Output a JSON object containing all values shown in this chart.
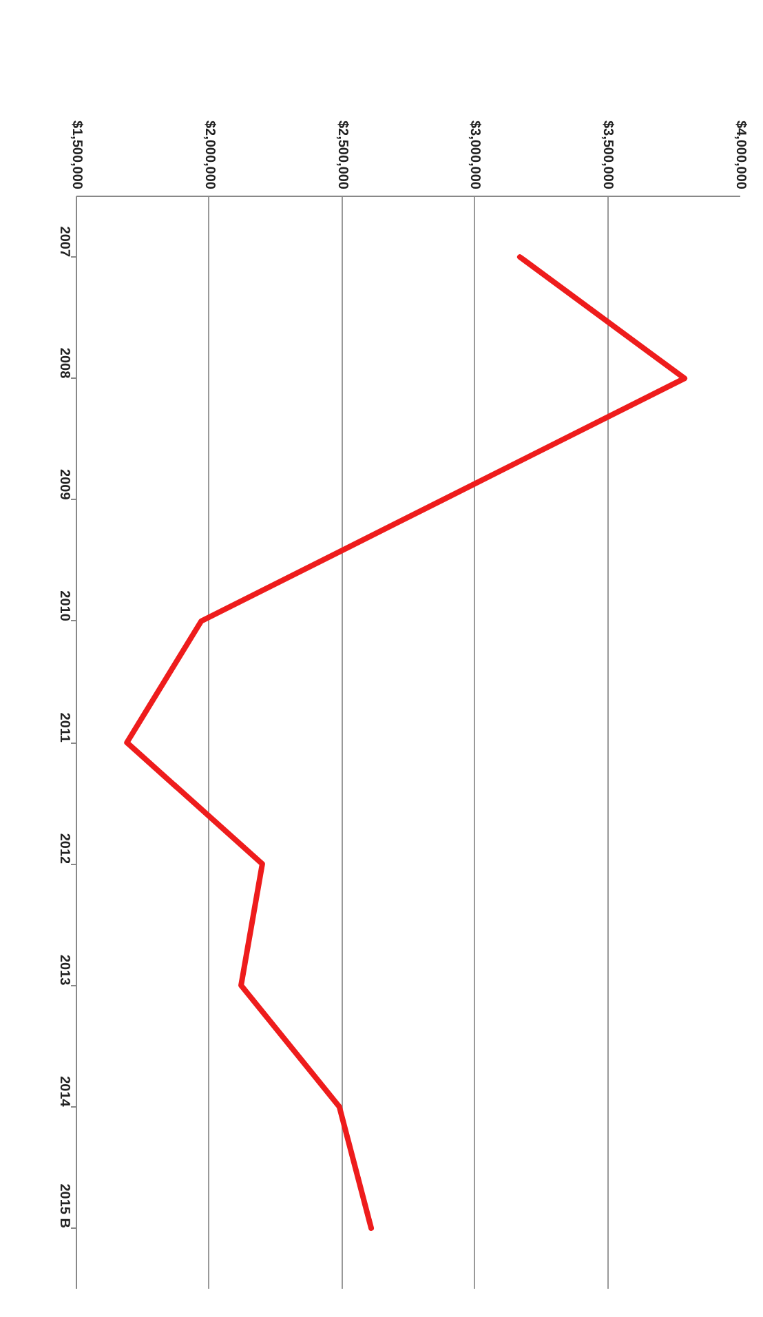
{
  "chart_data": {
    "type": "line",
    "orientation": "horizontal",
    "categories": [
      "2007",
      "2008",
      "2009",
      "2010",
      "2011",
      "2012",
      "2013",
      "2014",
      "2015 B"
    ],
    "values": [
      3170000,
      3790000,
      2880000,
      1970000,
      1690000,
      2200000,
      2120000,
      2490000,
      2610000
    ],
    "color": "#ee1c1c",
    "xlim": [
      1500000,
      4000000
    ],
    "xticks": [
      {
        "value": 1500000,
        "label": "$1,500,000"
      },
      {
        "value": 2000000,
        "label": "$2,000,000"
      },
      {
        "value": 2500000,
        "label": "$2,500,000"
      },
      {
        "value": 3000000,
        "label": "$3,000,000"
      },
      {
        "value": 3500000,
        "label": "$3,500,000"
      },
      {
        "value": 4000000,
        "label": "$4,000,000"
      }
    ],
    "grid": "x"
  }
}
